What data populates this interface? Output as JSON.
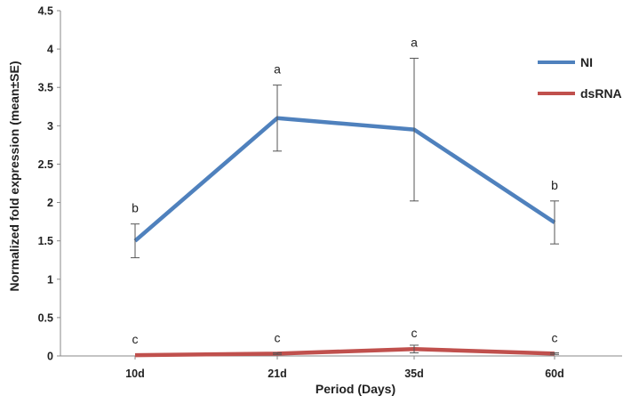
{
  "chart_data": {
    "type": "line",
    "categories": [
      "10d",
      "21d",
      "35d",
      "60d"
    ],
    "xlabel": "Period (Days)",
    "ylabel": "Normalized fold expression (mean±SE)",
    "ylim": [
      0,
      4.5
    ],
    "yticks": [
      "0",
      "0.5",
      "1",
      "1.5",
      "2",
      "2.5",
      "3",
      "3.5",
      "4",
      "4.5"
    ],
    "grid": false,
    "legend_position": "top-right",
    "series": [
      {
        "name": "NI",
        "color": "#4f81bd",
        "values": [
          1.5,
          3.1,
          2.95,
          1.74
        ],
        "error": [
          0.22,
          0.43,
          0.93,
          0.28
        ],
        "labels": [
          "b",
          "a",
          "a",
          "b"
        ]
      },
      {
        "name": "dsRNA",
        "color": "#c0504d",
        "values": [
          0.01,
          0.03,
          0.09,
          0.03
        ],
        "error": [
          0.0,
          0.01,
          0.05,
          0.01
        ],
        "labels": [
          "c",
          "c",
          "c",
          "c"
        ]
      }
    ]
  }
}
